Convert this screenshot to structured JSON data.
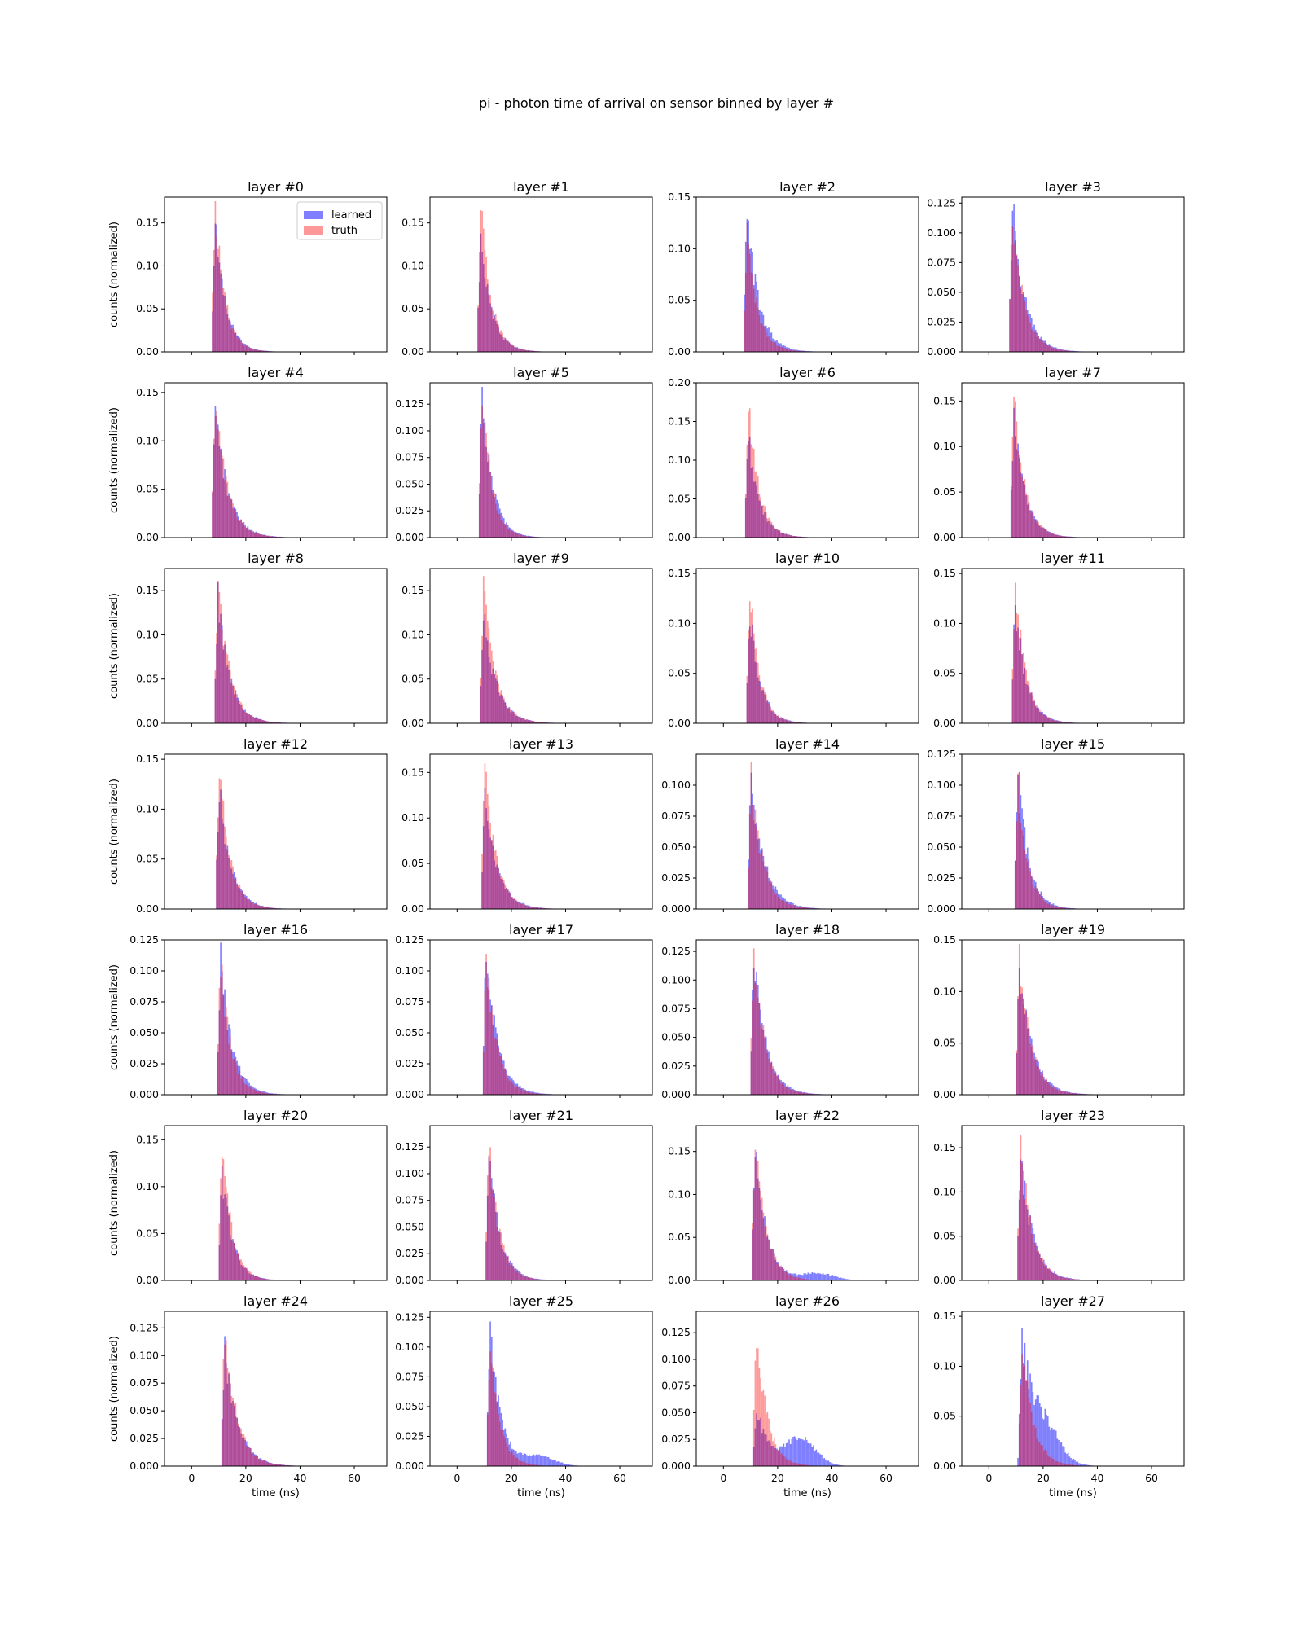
{
  "figure": {
    "title": "pi - photon time of arrival on sensor binned by layer #",
    "xlabel": "time (ns)",
    "ylabel": "counts (normalized)",
    "legend": [
      "learned",
      "truth"
    ]
  },
  "colors": {
    "learned": "#0000ff",
    "truth": "#ff0000",
    "overlap": "#8e2a8e"
  },
  "chart_data": {
    "type": "bar",
    "title": "pi - photon time of arrival on sensor binned by layer #",
    "xlabel": "time (ns)",
    "ylabel": "counts (normalized)",
    "xlim": [
      -10,
      72
    ],
    "x_ticks": [
      0,
      20,
      40,
      60
    ],
    "grid": false,
    "legend_position": "top-right of first panel",
    "series_names": [
      "learned",
      "truth"
    ],
    "panels": [
      {
        "title": "layer #0",
        "ymax": 0.18,
        "yticks": [
          0.0,
          0.05,
          0.1,
          0.15
        ],
        "yfmt": 2,
        "onset": 7.0,
        "learned_peak": 0.16,
        "truth_peak": 0.18,
        "learned_tail_bump": null,
        "truth_tail_bump": null
      },
      {
        "title": "layer #1",
        "ymax": 0.18,
        "yticks": [
          0.0,
          0.05,
          0.1,
          0.15
        ],
        "yfmt": 2,
        "onset": 7.0,
        "learned_peak": 0.14,
        "truth_peak": 0.18,
        "learned_tail_bump": null,
        "truth_tail_bump": null
      },
      {
        "title": "layer #2",
        "ymax": 0.15,
        "yticks": [
          0.0,
          0.05,
          0.1,
          0.15
        ],
        "yfmt": 2,
        "onset": 7.0,
        "learned_peak": 0.145,
        "truth_peak": 0.12,
        "learned_tail_bump": null,
        "truth_tail_bump": null
      },
      {
        "title": "layer #3",
        "ymax": 0.13,
        "yticks": [
          0.0,
          0.025,
          0.05,
          0.075,
          0.1,
          0.125
        ],
        "yfmt": 3,
        "onset": 7.0,
        "learned_peak": 0.13,
        "truth_peak": 0.125,
        "learned_tail_bump": null,
        "truth_tail_bump": null
      },
      {
        "title": "layer #4",
        "ymax": 0.16,
        "yticks": [
          0.0,
          0.05,
          0.1,
          0.15
        ],
        "yfmt": 2,
        "onset": 7.0,
        "learned_peak": 0.14,
        "truth_peak": 0.155,
        "learned_tail_bump": null,
        "truth_tail_bump": null
      },
      {
        "title": "layer #5",
        "ymax": 0.145,
        "yticks": [
          0.0,
          0.025,
          0.05,
          0.075,
          0.1,
          0.125
        ],
        "yfmt": 3,
        "onset": 7.5,
        "learned_peak": 0.14,
        "truth_peak": 0.14,
        "learned_tail_bump": null,
        "truth_tail_bump": null
      },
      {
        "title": "layer #6",
        "ymax": 0.2,
        "yticks": [
          0.0,
          0.05,
          0.1,
          0.15,
          0.2
        ],
        "yfmt": 2,
        "onset": 7.5,
        "learned_peak": 0.14,
        "truth_peak": 0.195,
        "learned_tail_bump": null,
        "truth_tail_bump": null
      },
      {
        "title": "layer #7",
        "ymax": 0.17,
        "yticks": [
          0.0,
          0.05,
          0.1,
          0.15
        ],
        "yfmt": 2,
        "onset": 7.5,
        "learned_peak": 0.14,
        "truth_peak": 0.165,
        "learned_tail_bump": null,
        "truth_tail_bump": null
      },
      {
        "title": "layer #8",
        "ymax": 0.175,
        "yticks": [
          0.0,
          0.05,
          0.1,
          0.15
        ],
        "yfmt": 2,
        "onset": 8.0,
        "learned_peak": 0.15,
        "truth_peak": 0.175,
        "learned_tail_bump": null,
        "truth_tail_bump": null
      },
      {
        "title": "layer #9",
        "ymax": 0.175,
        "yticks": [
          0.0,
          0.05,
          0.1,
          0.15
        ],
        "yfmt": 2,
        "onset": 8.0,
        "learned_peak": 0.13,
        "truth_peak": 0.17,
        "learned_tail_bump": null,
        "truth_tail_bump": null
      },
      {
        "title": "layer #10",
        "ymax": 0.155,
        "yticks": [
          0.0,
          0.05,
          0.1,
          0.15
        ],
        "yfmt": 2,
        "onset": 8.0,
        "learned_peak": 0.12,
        "truth_peak": 0.145,
        "learned_tail_bump": null,
        "truth_tail_bump": null
      },
      {
        "title": "layer #11",
        "ymax": 0.155,
        "yticks": [
          0.0,
          0.05,
          0.1,
          0.15
        ],
        "yfmt": 2,
        "onset": 8.0,
        "learned_peak": 0.13,
        "truth_peak": 0.15,
        "learned_tail_bump": null,
        "truth_tail_bump": null
      },
      {
        "title": "layer #12",
        "ymax": 0.155,
        "yticks": [
          0.0,
          0.05,
          0.1,
          0.15
        ],
        "yfmt": 2,
        "onset": 8.5,
        "learned_peak": 0.13,
        "truth_peak": 0.15,
        "learned_tail_bump": null,
        "truth_tail_bump": null
      },
      {
        "title": "layer #13",
        "ymax": 0.17,
        "yticks": [
          0.0,
          0.05,
          0.1,
          0.15
        ],
        "yfmt": 2,
        "onset": 8.5,
        "learned_peak": 0.14,
        "truth_peak": 0.165,
        "learned_tail_bump": null,
        "truth_tail_bump": null
      },
      {
        "title": "layer #14",
        "ymax": 0.125,
        "yticks": [
          0.0,
          0.025,
          0.05,
          0.075,
          0.1
        ],
        "yfmt": 3,
        "onset": 8.5,
        "learned_peak": 0.118,
        "truth_peak": 0.112,
        "learned_tail_bump": null,
        "truth_tail_bump": null
      },
      {
        "title": "layer #15",
        "ymax": 0.125,
        "yticks": [
          0.0,
          0.025,
          0.05,
          0.075,
          0.1,
          0.125
        ],
        "yfmt": 3,
        "onset": 9.0,
        "learned_peak": 0.12,
        "truth_peak": 0.108,
        "learned_tail_bump": null,
        "truth_tail_bump": null
      },
      {
        "title": "layer #16",
        "ymax": 0.125,
        "yticks": [
          0.0,
          0.025,
          0.05,
          0.075,
          0.1,
          0.125
        ],
        "yfmt": 3,
        "onset": 9.0,
        "learned_peak": 0.12,
        "truth_peak": 0.115,
        "learned_tail_bump": null,
        "truth_tail_bump": null
      },
      {
        "title": "layer #17",
        "ymax": 0.125,
        "yticks": [
          0.0,
          0.025,
          0.05,
          0.075,
          0.1,
          0.125
        ],
        "yfmt": 3,
        "onset": 9.0,
        "learned_peak": 0.125,
        "truth_peak": 0.118,
        "learned_tail_bump": null,
        "truth_tail_bump": null
      },
      {
        "title": "layer #18",
        "ymax": 0.135,
        "yticks": [
          0.0,
          0.025,
          0.05,
          0.075,
          0.1,
          0.125
        ],
        "yfmt": 3,
        "onset": 9.5,
        "learned_peak": 0.13,
        "truth_peak": 0.132,
        "learned_tail_bump": null,
        "truth_tail_bump": null
      },
      {
        "title": "layer #19",
        "ymax": 0.15,
        "yticks": [
          0.0,
          0.05,
          0.1,
          0.15
        ],
        "yfmt": 2,
        "onset": 9.5,
        "learned_peak": 0.135,
        "truth_peak": 0.14,
        "learned_tail_bump": null,
        "truth_tail_bump": null
      },
      {
        "title": "layer #20",
        "ymax": 0.165,
        "yticks": [
          0.0,
          0.05,
          0.1,
          0.15
        ],
        "yfmt": 2,
        "onset": 9.5,
        "learned_peak": 0.125,
        "truth_peak": 0.16,
        "learned_tail_bump": null,
        "truth_tail_bump": null
      },
      {
        "title": "layer #21",
        "ymax": 0.145,
        "yticks": [
          0.0,
          0.025,
          0.05,
          0.075,
          0.1,
          0.125
        ],
        "yfmt": 3,
        "onset": 10.0,
        "learned_peak": 0.125,
        "truth_peak": 0.14,
        "learned_tail_bump": null,
        "truth_tail_bump": null
      },
      {
        "title": "layer #22",
        "ymax": 0.18,
        "yticks": [
          0.0,
          0.05,
          0.1,
          0.15
        ],
        "yfmt": 2,
        "onset": 10.0,
        "learned_peak": 0.16,
        "truth_peak": 0.175,
        "learned_tail_bump": [
          35,
          0.008
        ],
        "truth_tail_bump": null
      },
      {
        "title": "layer #23",
        "ymax": 0.175,
        "yticks": [
          0.0,
          0.05,
          0.1,
          0.15
        ],
        "yfmt": 2,
        "onset": 10.0,
        "learned_peak": 0.15,
        "truth_peak": 0.165,
        "learned_tail_bump": null,
        "truth_tail_bump": null
      },
      {
        "title": "layer #24",
        "ymax": 0.14,
        "yticks": [
          0.0,
          0.025,
          0.05,
          0.075,
          0.1,
          0.125
        ],
        "yfmt": 3,
        "onset": 10.5,
        "learned_peak": 0.115,
        "truth_peak": 0.135,
        "learned_tail_bump": null,
        "truth_tail_bump": null
      },
      {
        "title": "layer #25",
        "ymax": 0.13,
        "yticks": [
          0.0,
          0.025,
          0.05,
          0.075,
          0.1,
          0.125
        ],
        "yfmt": 3,
        "onset": 10.5,
        "learned_peak": 0.125,
        "truth_peak": 0.115,
        "learned_tail_bump": [
          30,
          0.008
        ],
        "truth_tail_bump": null
      },
      {
        "title": "layer #26",
        "ymax": 0.145,
        "yticks": [
          0.0,
          0.025,
          0.05,
          0.075,
          0.1,
          0.125
        ],
        "yfmt": 3,
        "onset": 10.5,
        "learned_peak": 0.06,
        "truth_peak": 0.14,
        "learned_tail_bump": [
          28,
          0.025
        ],
        "truth_tail_bump": null
      },
      {
        "title": "layer #27",
        "ymax": 0.155,
        "yticks": [
          0.0,
          0.05,
          0.1,
          0.15
        ],
        "yfmt": 2,
        "onset": 10.5,
        "learned_peak": 0.125,
        "truth_peak": 0.135,
        "learned_tail_bump": [
          20,
          0.035
        ],
        "truth_tail_bump": null
      }
    ]
  }
}
